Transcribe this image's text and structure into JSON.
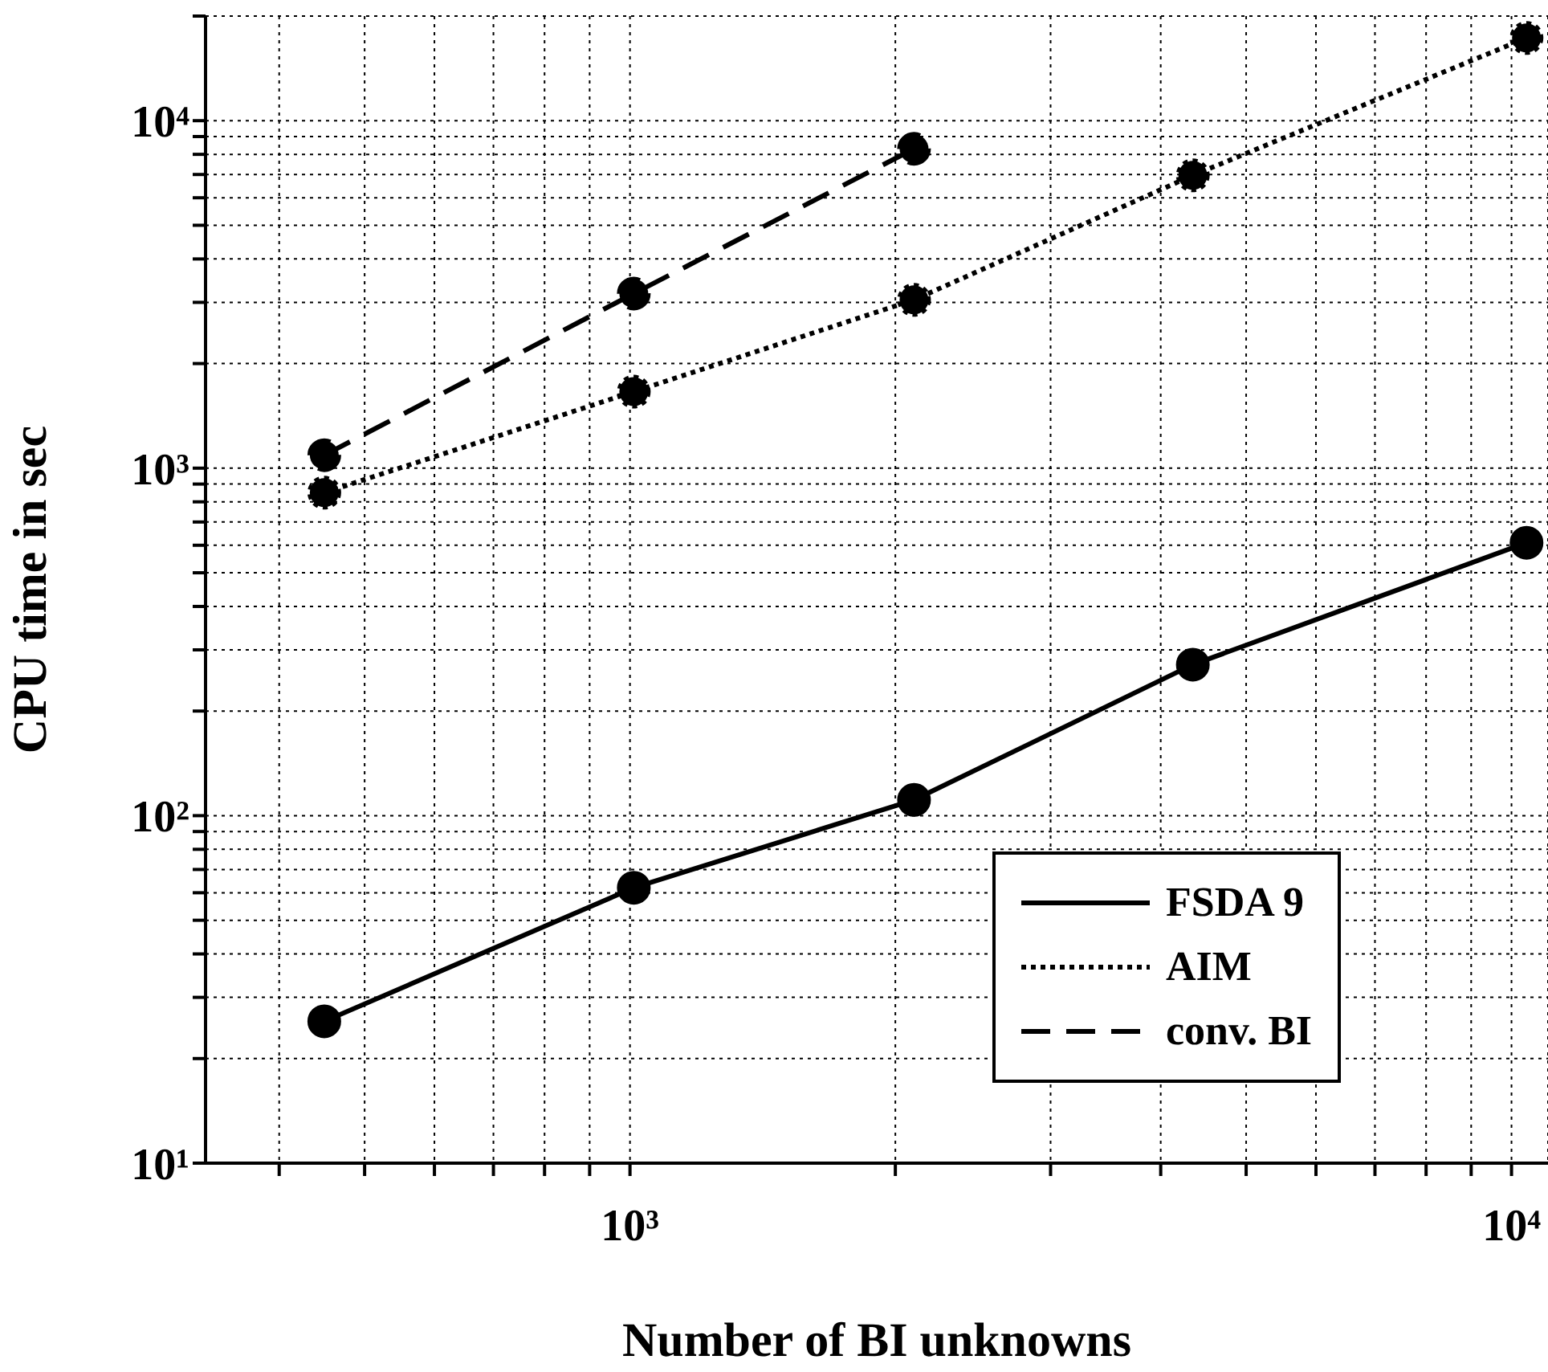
{
  "chart_data": {
    "type": "line",
    "xlabel": "Number of BI unknowns",
    "ylabel": "CPU time in sec",
    "log": "xy",
    "grid": true,
    "legend": "bottom right",
    "marker": "circle",
    "xlim": [
      330,
      11000
    ],
    "ylim": [
      10,
      20000
    ],
    "xticks": [
      {
        "value": 400,
        "label": null
      },
      {
        "value": 500,
        "label": null
      },
      {
        "value": 600,
        "label": null
      },
      {
        "value": 700,
        "label": null
      },
      {
        "value": 800,
        "label": null
      },
      {
        "value": 900,
        "label": null
      },
      {
        "value": 1000,
        "label": "10³"
      },
      {
        "value": 2000,
        "label": null
      },
      {
        "value": 3000,
        "label": null
      },
      {
        "value": 4000,
        "label": null
      },
      {
        "value": 5000,
        "label": null
      },
      {
        "value": 6000,
        "label": null
      },
      {
        "value": 7000,
        "label": null
      },
      {
        "value": 8000,
        "label": null
      },
      {
        "value": 9000,
        "label": null
      },
      {
        "value": 10000,
        "label": "10⁴"
      }
    ],
    "yticks": [
      {
        "value": 10,
        "label": "10¹"
      },
      {
        "value": 20,
        "label": null
      },
      {
        "value": 30,
        "label": null
      },
      {
        "value": 40,
        "label": null
      },
      {
        "value": 50,
        "label": null
      },
      {
        "value": 60,
        "label": null
      },
      {
        "value": 70,
        "label": null
      },
      {
        "value": 80,
        "label": null
      },
      {
        "value": 90,
        "label": null
      },
      {
        "value": 100,
        "label": "10²"
      },
      {
        "value": 200,
        "label": null
      },
      {
        "value": 300,
        "label": null
      },
      {
        "value": 400,
        "label": null
      },
      {
        "value": 500,
        "label": null
      },
      {
        "value": 600,
        "label": null
      },
      {
        "value": 700,
        "label": null
      },
      {
        "value": 800,
        "label": null
      },
      {
        "value": 900,
        "label": null
      },
      {
        "value": 1000,
        "label": "10³"
      },
      {
        "value": 2000,
        "label": null
      },
      {
        "value": 3000,
        "label": null
      },
      {
        "value": 4000,
        "label": null
      },
      {
        "value": 5000,
        "label": null
      },
      {
        "value": 6000,
        "label": null
      },
      {
        "value": 7000,
        "label": null
      },
      {
        "value": 8000,
        "label": null
      },
      {
        "value": 9000,
        "label": null
      },
      {
        "value": 10000,
        "label": "10⁴"
      },
      {
        "value": 20000,
        "label": null
      }
    ],
    "x": [
      450,
      1010,
      2100,
      4350,
      10400
    ],
    "series": [
      {
        "name": "FSDA 9",
        "color": "#000000",
        "line_style": "solid",
        "values": [
          25.6,
          62,
          111,
          272,
          610
        ]
      },
      {
        "name": "AIM",
        "color": "#000000",
        "line_style": "dotted",
        "values": [
          850,
          1660,
          3050,
          6960,
          17300
        ]
      },
      {
        "name": "conv. BI",
        "color": "#000000",
        "line_style": "dashed",
        "values": [
          1090,
          3180,
          8300,
          null,
          null
        ]
      }
    ]
  }
}
